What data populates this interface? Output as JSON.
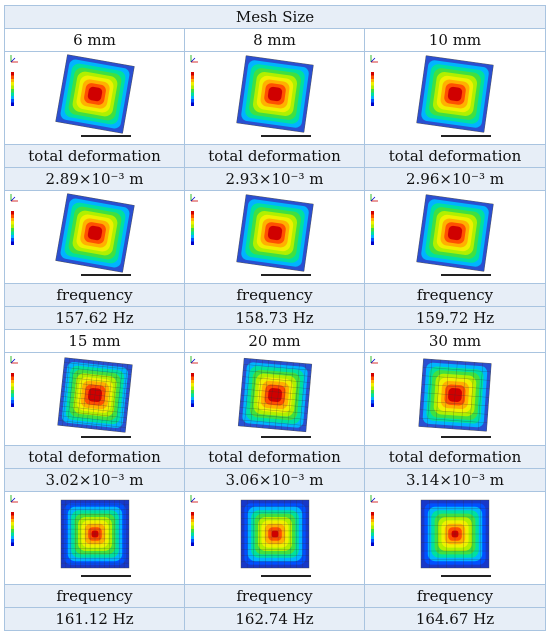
{
  "table": {
    "title": "Mesh Size",
    "blocks": [
      {
        "sizes": [
          "6 mm",
          "8 mm",
          "10 mm"
        ],
        "deformation_label": "total deformation",
        "deformation_values": [
          "2.89×10⁻³ m",
          "2.93×10⁻³ m",
          "2.96×10⁻³ m"
        ],
        "frequency_label": "frequency",
        "frequency_values": [
          "157.62 Hz",
          "158.73 Hz",
          "159.72 Hz"
        ]
      },
      {
        "sizes": [
          "15 mm",
          "20 mm",
          "30 mm"
        ],
        "deformation_label": "total deformation",
        "deformation_values": [
          "3.02×10⁻³ m",
          "3.06×10⁻³ m",
          "3.14×10⁻³ m"
        ],
        "frequency_label": "frequency",
        "frequency_values": [
          "161.12 Hz",
          "162.74 Hz",
          "164.67 Hz"
        ]
      }
    ]
  },
  "colors": {
    "header_fill": "#e7eef7",
    "border": "#a9c4e0",
    "contour": [
      "#0000c8",
      "#0050ff",
      "#00b4ff",
      "#00e0a0",
      "#40e040",
      "#b0f000",
      "#f0f000",
      "#ffb000",
      "#ff5000",
      "#d00000"
    ]
  }
}
